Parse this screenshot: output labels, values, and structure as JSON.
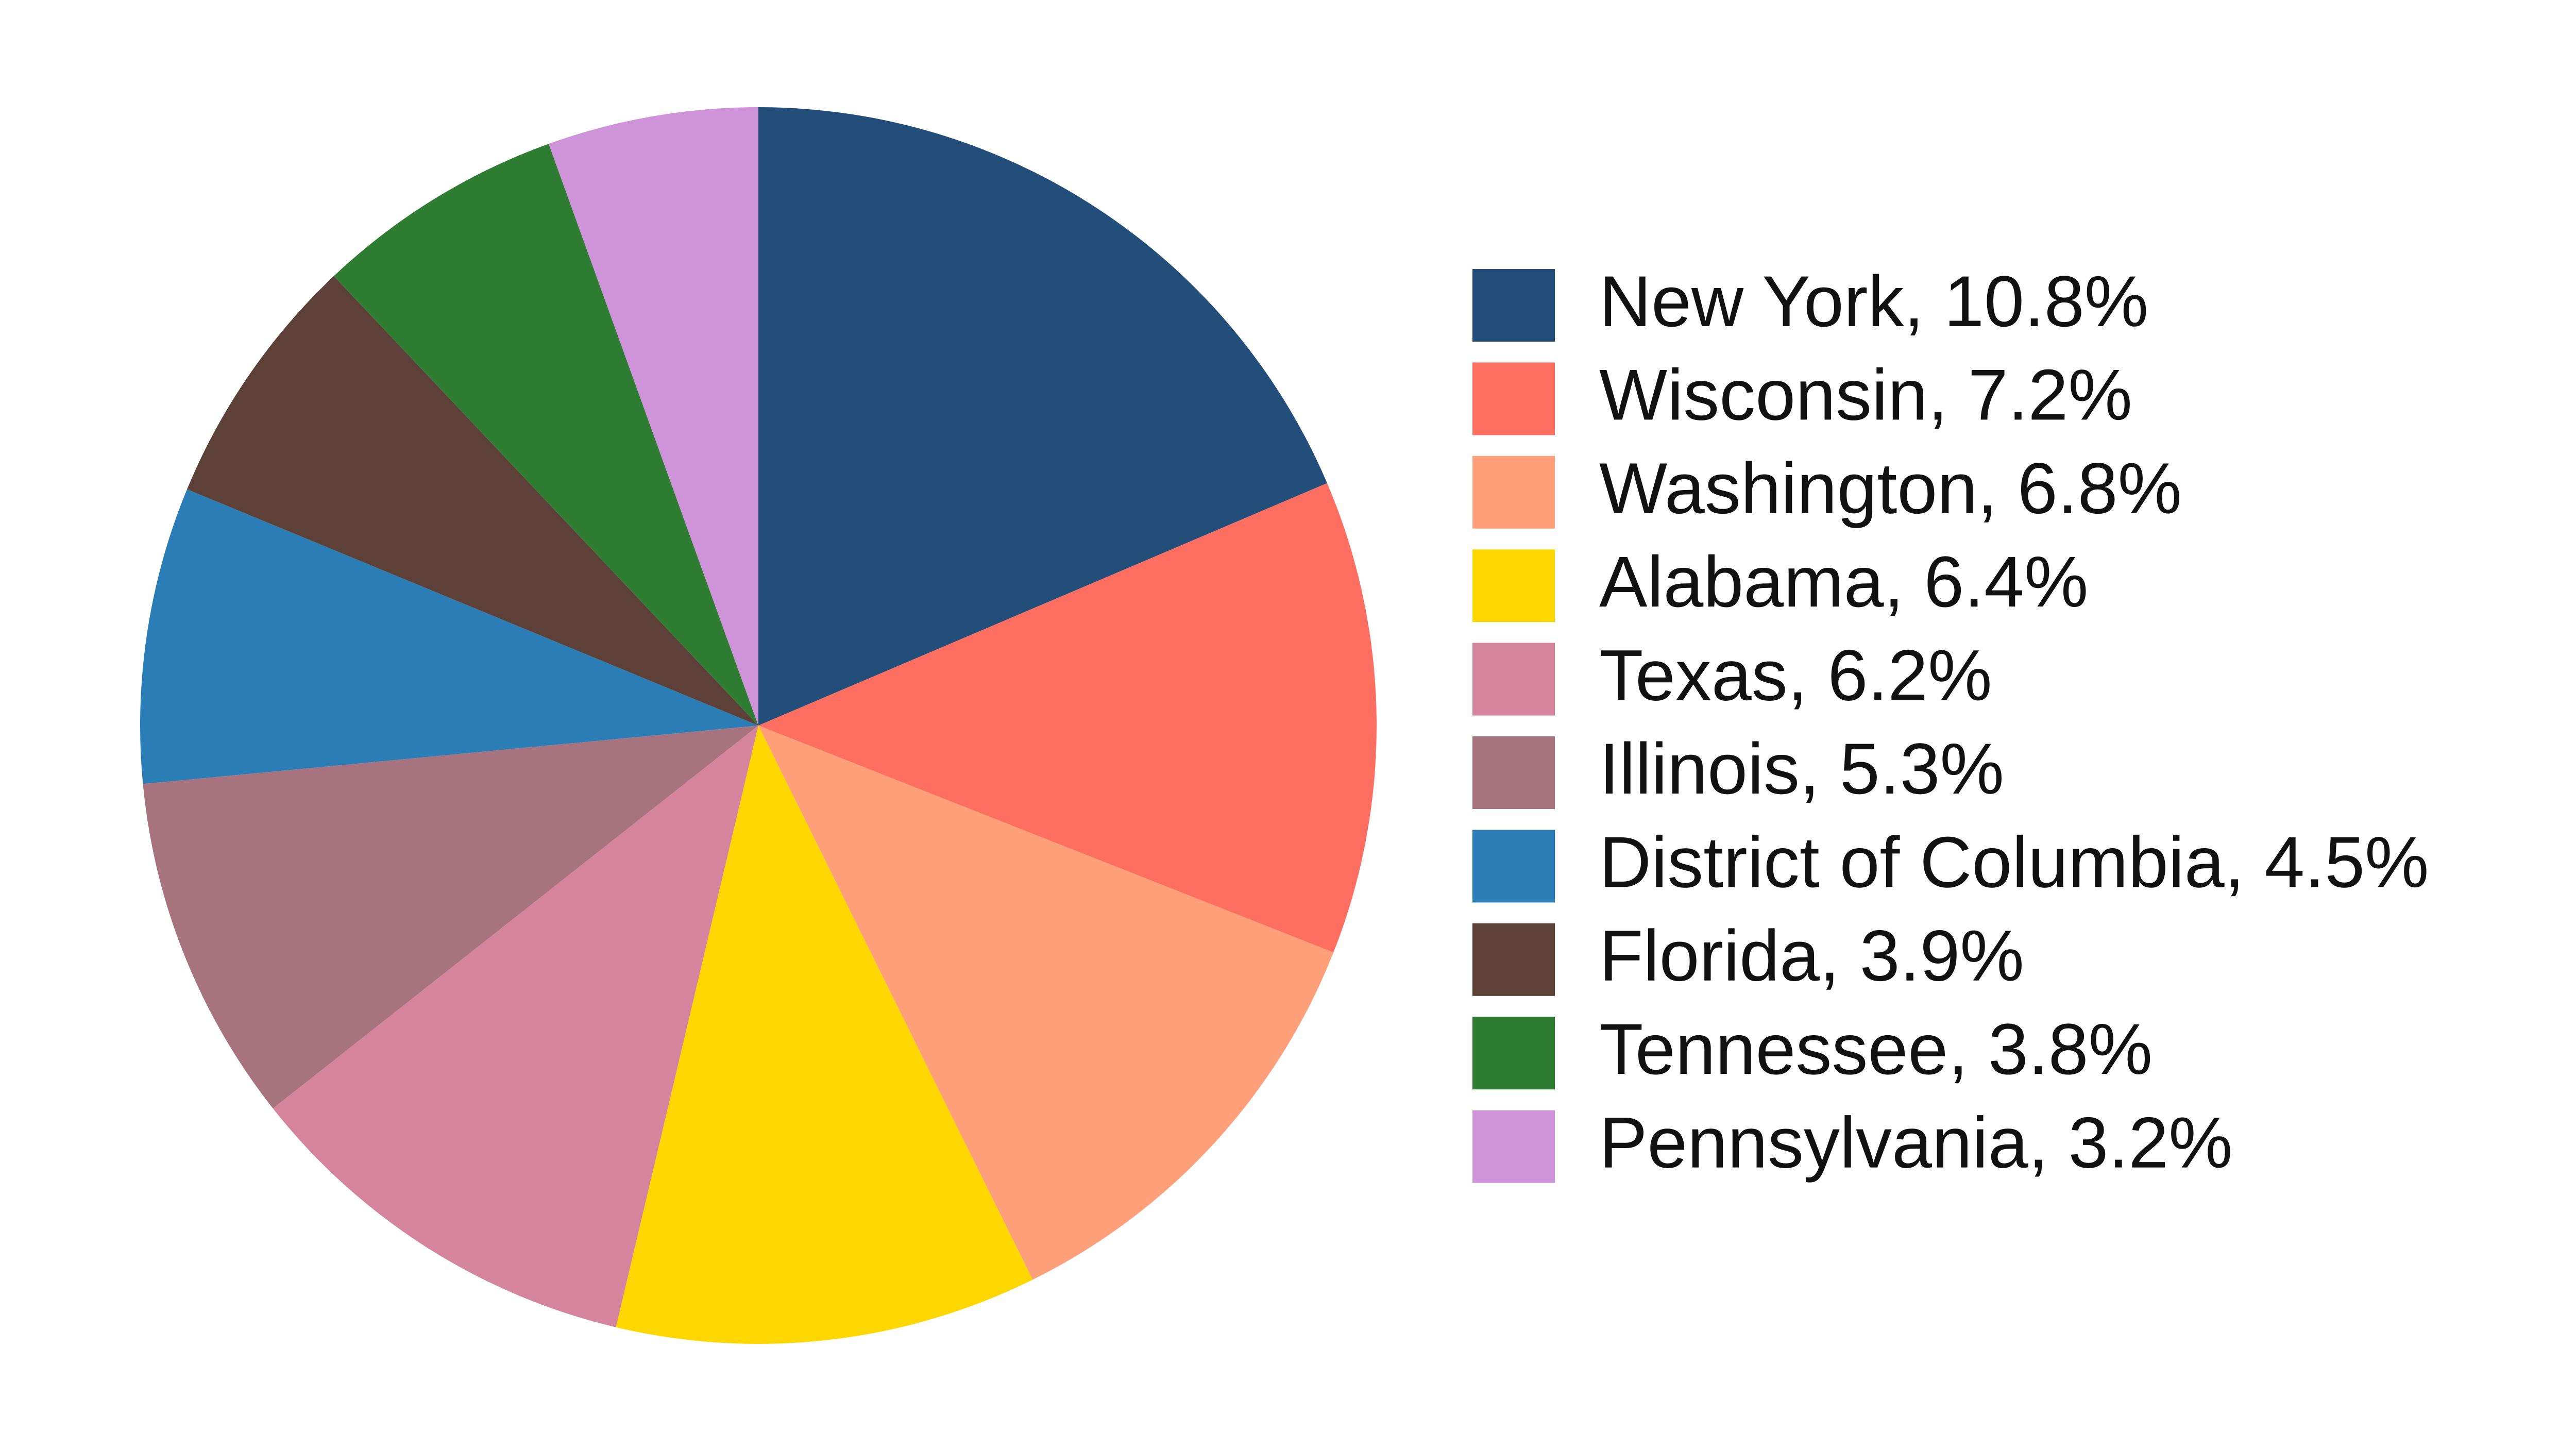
{
  "chart_data": {
    "type": "pie",
    "labels": [
      "New York, 10.8%",
      "Wisconsin, 7.2%",
      "Washington, 6.8%",
      "Alabama, 6.4%",
      "Texas, 6.2%",
      "Illinois, 5.3%",
      "District of Columbia, 4.5%",
      "Florida, 3.9%",
      "Tennessee, 3.8%",
      "Pennsylvania, 3.2%"
    ],
    "values": [
      10.8,
      7.2,
      6.8,
      6.4,
      6.2,
      5.3,
      4.5,
      3.9,
      3.8,
      3.2
    ],
    "colors": [
      "#224e79",
      "#ff6f61",
      "#ffa07a",
      "#ffd700",
      "#d4849c",
      "#a7737f",
      "#2a7db5",
      "#5d4037",
      "#2e7d32",
      "#ce93d8"
    ],
    "legend": "right"
  }
}
